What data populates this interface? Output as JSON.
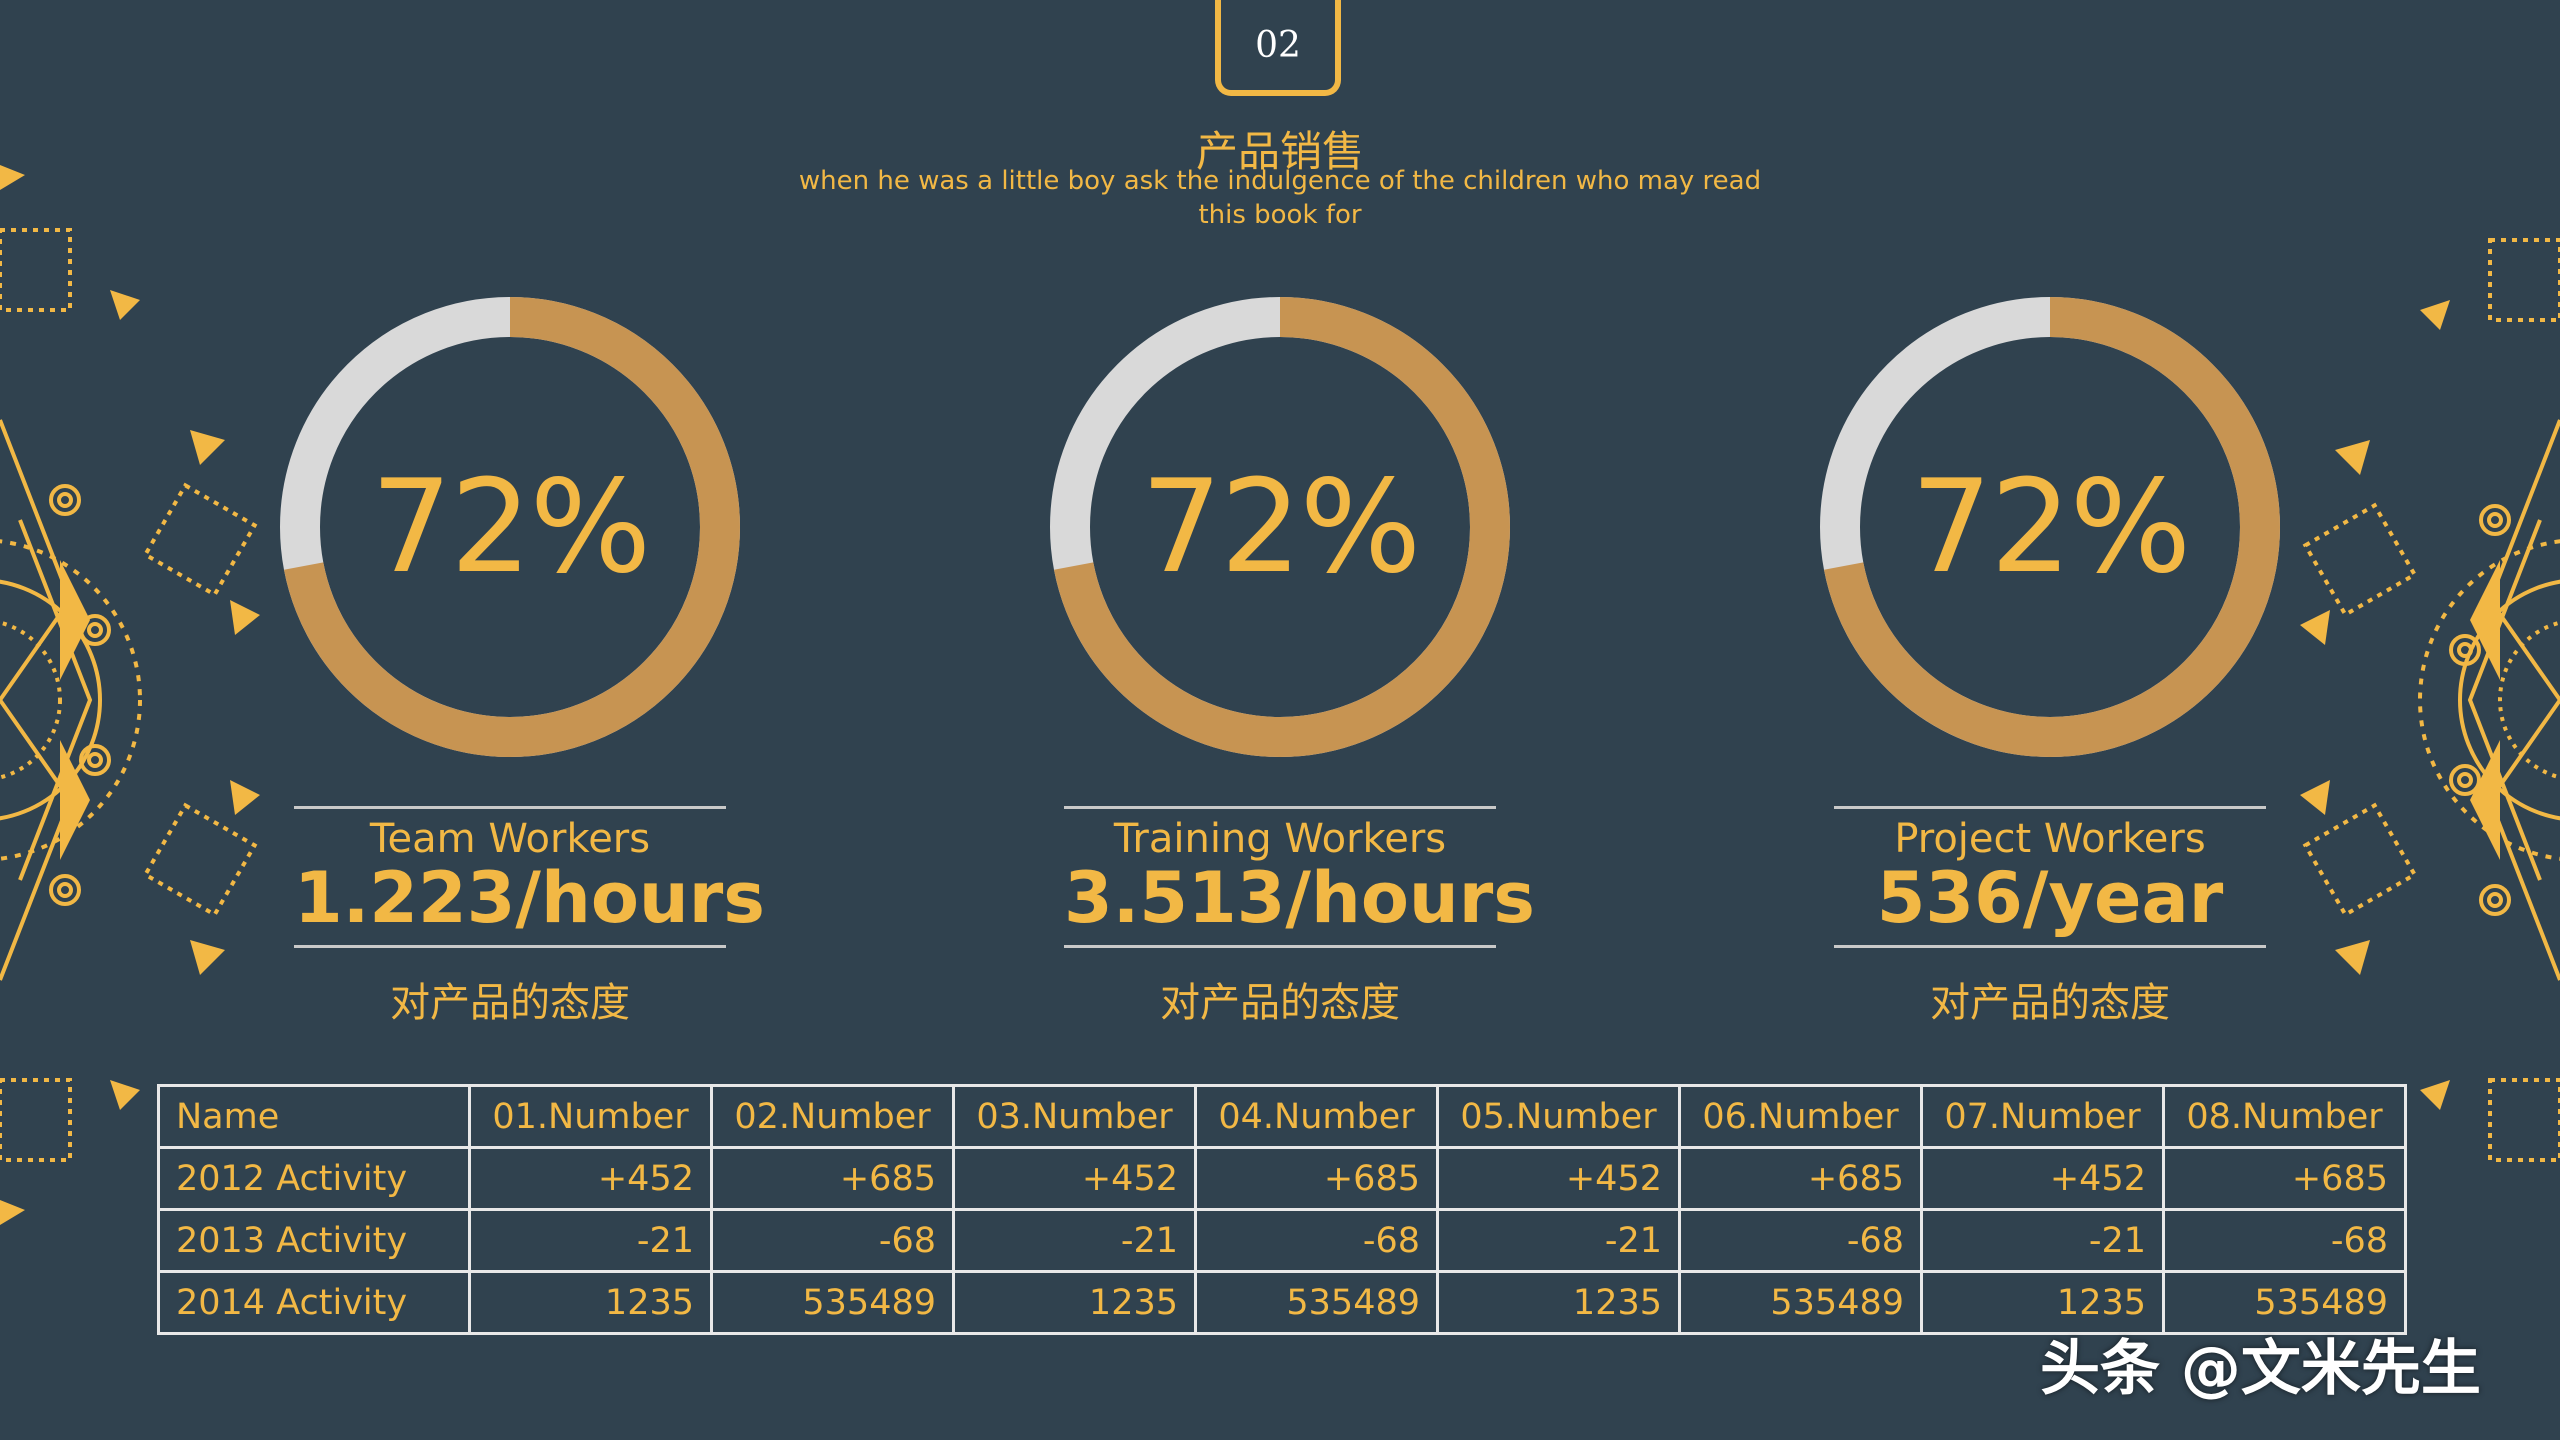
{
  "header": {
    "page_number": "02",
    "title": "产品销售",
    "subtitle": "when he was a little boy ask the indulgence of the children who may read this book for"
  },
  "metrics": [
    {
      "percent_text": "72%",
      "percent_value": 72,
      "label": "Team Workers",
      "value": "1.223/hours",
      "note": "对产品的态度"
    },
    {
      "percent_text": "72%",
      "percent_value": 72,
      "label": "Training Workers",
      "value": "3.513/hours",
      "note": "对产品的态度"
    },
    {
      "percent_text": "72%",
      "percent_value": 72,
      "label": "Project Workers",
      "value": "536/year",
      "note": "对产品的态度"
    }
  ],
  "table": {
    "headers": [
      "Name",
      "01.Number",
      "02.Number",
      "03.Number",
      "04.Number",
      "05.Number",
      "06.Number",
      "07.Number",
      "08.Number"
    ],
    "rows": [
      [
        "2012 Activity",
        "+452",
        "+685",
        "+452",
        "+685",
        "+452",
        "+685",
        "+452",
        "+685"
      ],
      [
        "2013 Activity",
        "-21",
        "-68",
        "-21",
        "-68",
        "-21",
        "-68",
        "-21",
        "-68"
      ],
      [
        "2014 Activity",
        "1235",
        "535489",
        "1235",
        "535489",
        "1235",
        "535489",
        "1235",
        "535489"
      ]
    ]
  },
  "watermark": "头条 @文米先生",
  "colors": {
    "background": "#30424f",
    "accent": "#f2b845",
    "ring_fill": "#c79452",
    "ring_track": "#d9d9d9",
    "table_border": "#e8e8e8"
  }
}
